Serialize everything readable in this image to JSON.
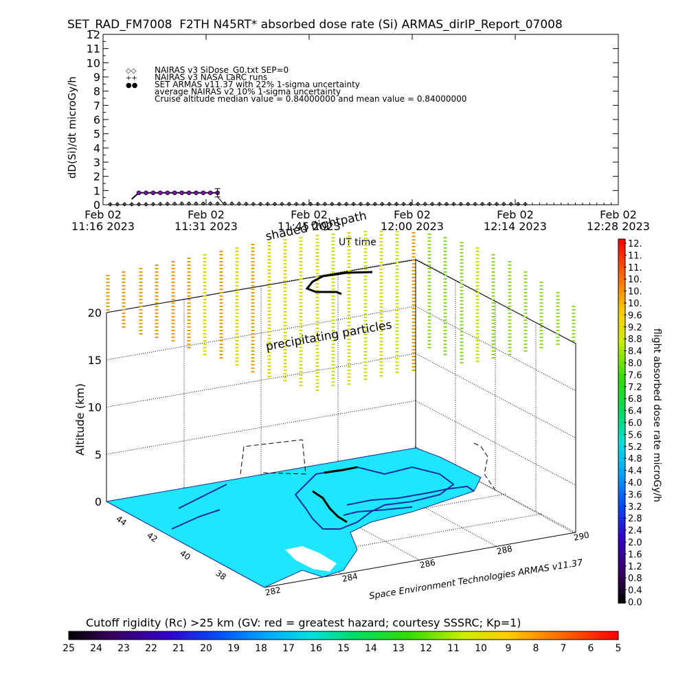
{
  "title": "SET_RAD_FM7008  F2TH N45RT* absorbed dose rate (Si) ARMAS_dirIP_Report_07008",
  "top_panel": {
    "ylabel": "dD(Si)/dt microGy/h",
    "xlabel": "UT time",
    "legend": [
      {
        "marker": "◇◇",
        "text": "NAIRAS v3 SiDose_G0.txt SEP=0"
      },
      {
        "marker": "++",
        "text": "NAIRAS v3 NASA LaRC runs"
      },
      {
        "marker": "●●",
        "text": "SET ARMAS v11.37 with 22% 1-sigma uncertainty",
        "color": "#1a3cff"
      },
      {
        "marker": "",
        "text": "average NAIRAS v2 10% 1-sigma uncertainty"
      },
      {
        "marker": "",
        "text": "Cruise altitude median value = 0.84000000 and mean value = 0.84000000"
      }
    ],
    "x_ticks": [
      {
        "date": "Feb 02",
        "time": "11:16 2023"
      },
      {
        "date": "Feb 02",
        "time": "11:31 2023"
      },
      {
        "date": "Feb 02",
        "time": "11:45 2023"
      },
      {
        "date": "Feb 02",
        "time": "12:00 2023"
      },
      {
        "date": "Feb 02",
        "time": "12:14 2023"
      },
      {
        "date": "Feb 02",
        "time": "12:28 2023"
      }
    ]
  },
  "chart_data": [
    {
      "type": "scatter",
      "title": "SET_RAD_FM7008  F2TH N45RT* absorbed dose rate (Si) ARMAS_dirIP_Report_07008",
      "xlabel": "UT time",
      "ylabel": "dD(Si)/dt microGy/h",
      "xlim": [
        "11:16",
        "12:28"
      ],
      "ylim": [
        0,
        12
      ],
      "series": [
        {
          "name": "NAIRAS v3 SiDose_G0.txt SEP=0",
          "x": [
            "11:17",
            "11:18",
            "11:19",
            "11:20",
            "11:21",
            "11:22",
            "11:23",
            "11:24",
            "11:25",
            "11:26",
            "11:27",
            "11:28",
            "11:29",
            "11:30",
            "11:31",
            "11:32",
            "11:33",
            "11:34",
            "11:35",
            "11:36",
            "11:37",
            "11:38",
            "11:39",
            "11:40",
            "11:41",
            "11:42",
            "11:43",
            "11:44",
            "11:45",
            "11:46",
            "11:47",
            "11:48",
            "11:49",
            "11:50",
            "11:51",
            "11:52",
            "11:53",
            "11:54",
            "11:55",
            "11:56",
            "11:57",
            "11:58",
            "11:59",
            "12:00",
            "12:01",
            "12:02",
            "12:03",
            "12:04",
            "12:05",
            "12:06",
            "12:07",
            "12:08",
            "12:09",
            "12:10",
            "12:11",
            "12:12",
            "12:13",
            "12:14",
            "12:15"
          ],
          "values": [
            0.03,
            0.03,
            0.03,
            0.03,
            0.03,
            0.03,
            0.04,
            0.05,
            0.06,
            0.07,
            0.08,
            0.08,
            0.08,
            0.08,
            0.08,
            0.08,
            0.08,
            0.08,
            0.07,
            0.06,
            0.05,
            0.05,
            0.05,
            0.05,
            0.05,
            0.05,
            0.05,
            0.05,
            0.05,
            0.05,
            0.05,
            0.05,
            0.05,
            0.05,
            0.05,
            0.05,
            0.05,
            0.05,
            0.05,
            0.05,
            0.05,
            0.05,
            0.05,
            0.05,
            0.05,
            0.05,
            0.05,
            0.05,
            0.05,
            0.05,
            0.05,
            0.05,
            0.05,
            0.05,
            0.05,
            0.05,
            0.05,
            0.05,
            0.05
          ]
        },
        {
          "name": "SET ARMAS v11.37 with 22% 1-sigma uncertainty",
          "x": [
            "11:20",
            "11:21",
            "11:22",
            "11:23",
            "11:24",
            "11:25",
            "11:26",
            "11:27",
            "11:28",
            "11:29",
            "11:30",
            "11:31",
            "11:32"
          ],
          "values": [
            0.4,
            0.84,
            0.84,
            0.84,
            0.84,
            0.84,
            0.84,
            0.84,
            0.84,
            0.84,
            0.84,
            0.84,
            0.84
          ]
        }
      ]
    },
    {
      "type": "scatter",
      "title": "shaded flightpath",
      "xlabel": "",
      "ylabel": "Altitude (km)",
      "zlim": [
        0,
        20
      ],
      "z_ticks": [
        0,
        5,
        10,
        15,
        20
      ],
      "lat_ticks": [
        "44",
        "42",
        "40",
        "38"
      ],
      "lon_ticks": [
        "282",
        "284",
        "286",
        "288",
        "290"
      ],
      "annotation": "precipitating particles",
      "credit": "Space Environment Technologies ARMAS v11.37"
    }
  ],
  "flight_panel": {
    "label_shaded": "shaded flightpath",
    "label_precip": "precipitating particles",
    "ylabel": "Altitude (km)",
    "credit": "Space Environment Technologies ARMAS v11.37"
  },
  "right_colorbar": {
    "label": "flight absorbed dose rate microGy/h",
    "ticks": [
      "12.",
      "11.",
      "11.",
      "10.",
      "10.",
      "10.",
      "9.6",
      "9.2",
      "8.8",
      "8.4",
      "8.0",
      "7.6",
      "7.2",
      "6.8",
      "6.4",
      "6.0",
      "5.6",
      "5.2",
      "4.8",
      "4.4",
      "4.0",
      "3.6",
      "3.2",
      "2.8",
      "2.4",
      "2.0",
      "1.6",
      "1.2",
      "0.8",
      "0.4",
      "0.0"
    ]
  },
  "bottom_colorbar": {
    "title": "Cutoff rigidity (Rc) >25 km (GV: red = greatest hazard; courtesy SSSRC; Kp=1)",
    "ticks": [
      "25",
      "24",
      "23",
      "22",
      "21",
      "20",
      "19",
      "18",
      "17",
      "16",
      "15",
      "14",
      "13",
      "12",
      "11",
      "10",
      "9",
      "8",
      "7",
      "6",
      "5"
    ]
  },
  "colors": {
    "armas": "#1a3cff",
    "ocean": "#1ee6ff",
    "coast": "#1a2aa0",
    "precip_yellow": "#e6e600",
    "precip_orange": "#ff9900",
    "precip_green": "#88dd22"
  }
}
